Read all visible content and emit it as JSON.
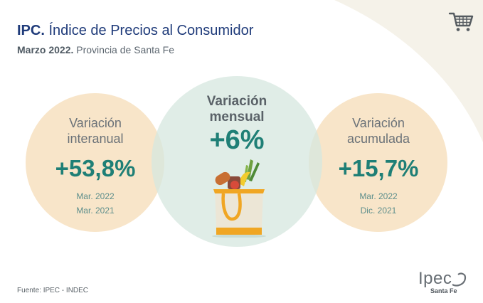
{
  "header": {
    "title_bold": "IPC.",
    "title_rest": " Índice de Precios al Consumidor",
    "subtitle_bold": "Marzo 2022.",
    "subtitle_rest": " Provincia de Santa Fe"
  },
  "cards": {
    "interanual": {
      "label_1": "Variación",
      "label_2": "interanual",
      "value": "+53,8%",
      "ref_1": "Mar. 2022",
      "ref_2": "Mar. 2021"
    },
    "mensual": {
      "label_1": "Variación",
      "label_2": "mensual",
      "value": "+6%"
    },
    "acumulada": {
      "label_1": "Variación",
      "label_2": "acumulada",
      "value": "+15,7%",
      "ref_1": "Mar. 2022",
      "ref_2": "Dic. 2021"
    }
  },
  "footer": {
    "source": "Fuente: IPEC - INDEC"
  },
  "logo": {
    "main": "Ipec",
    "sub": "Santa Fe"
  },
  "icons": {
    "cart": "shopping-cart-icon",
    "bag": "grocery-bag-illustration"
  },
  "colors": {
    "title": "#1f3b7a",
    "value": "#1f7f76",
    "peach": "#f8e4c6",
    "mint": "#d5e7df",
    "swoosh": "#f5f2e9"
  }
}
